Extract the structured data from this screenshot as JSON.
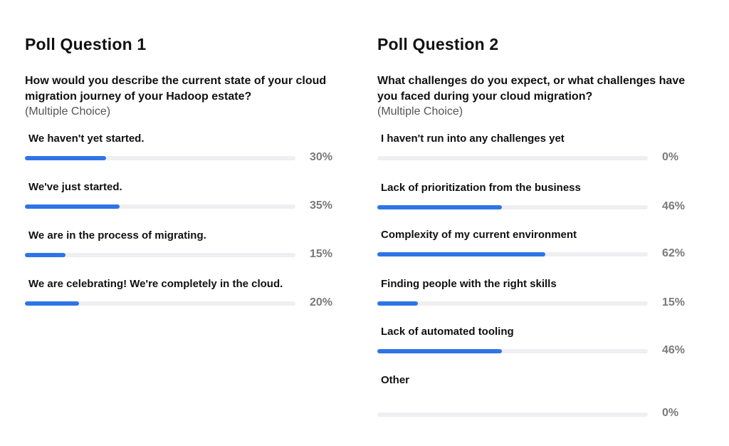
{
  "chart_data": [
    {
      "type": "bar",
      "title": "Poll Question 1",
      "question": "How would you describe the current state of your cloud migration journey of your Hadoop estate?",
      "note": "(Multiple Choice)",
      "categories": [
        "We haven't yet started.",
        "We've just started.",
        "We are in the process of migrating.",
        "We are celebrating! We're completely in the cloud."
      ],
      "values": [
        30,
        35,
        15,
        20
      ],
      "value_labels": [
        "30%",
        "35%",
        "15%",
        "20%"
      ],
      "ylim": [
        0,
        100
      ],
      "orientation": "horizontal",
      "colors": {
        "fill": "#2f74e6",
        "track": "#efeff2",
        "value_text": "#7a7a7a"
      }
    },
    {
      "type": "bar",
      "title": "Poll Question 2",
      "question": "What challenges do you expect, or what challenges have you faced during your cloud migration?",
      "note": "(Multiple Choice)",
      "categories": [
        "I haven't run into any challenges yet",
        "Lack of prioritization from the business",
        "Complexity of my current environment",
        "Finding people with the right skills",
        "Lack of automated tooling",
        "Other"
      ],
      "values": [
        0,
        46,
        62,
        15,
        46,
        0
      ],
      "value_labels": [
        "0%",
        "46%",
        "62%",
        "15%",
        "46%",
        "0%"
      ],
      "ylim": [
        0,
        100
      ],
      "orientation": "horizontal",
      "colors": {
        "fill": "#2f74e6",
        "track": "#efeff2",
        "value_text": "#7a7a7a"
      }
    }
  ]
}
